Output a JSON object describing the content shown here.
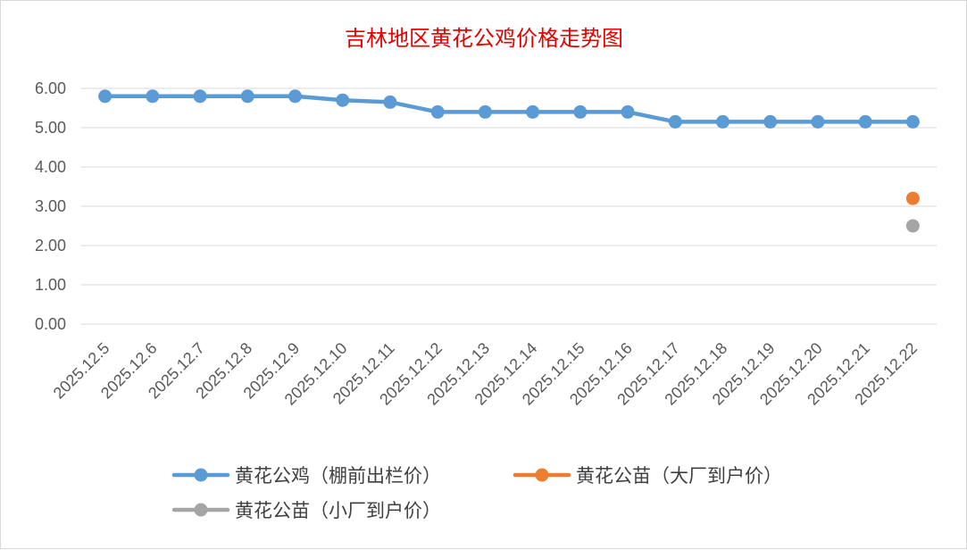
{
  "chart_data": {
    "type": "line",
    "title": "吉林地区黄花公鸡价格走势图",
    "categories": [
      "2025.12.5",
      "2025.12.6",
      "2025.12.7",
      "2025.12.8",
      "2025.12.9",
      "2025.12.10",
      "2025.12.11",
      "2025.12.12",
      "2025.12.13",
      "2025.12.14",
      "2025.12.15",
      "2025.12.16",
      "2025.12.17",
      "2025.12.18",
      "2025.12.19",
      "2025.12.20",
      "2025.12.21",
      "2025.12.22"
    ],
    "ylim": [
      0,
      6
    ],
    "yticks": [
      "0.00",
      "1.00",
      "2.00",
      "3.00",
      "4.00",
      "5.00",
      "6.00"
    ],
    "grid": true,
    "legend_position": "bottom",
    "series": [
      {
        "name": "黄花公鸡（棚前出栏价）",
        "color": "#5b9bd5",
        "values": [
          5.8,
          5.8,
          5.8,
          5.8,
          5.8,
          5.7,
          5.65,
          5.4,
          5.4,
          5.4,
          5.4,
          5.4,
          5.15,
          5.15,
          5.15,
          5.15,
          5.15,
          5.15
        ]
      },
      {
        "name": "黄花公苗（大厂到户价）",
        "color": "#ed7d31",
        "values": [
          null,
          null,
          null,
          null,
          null,
          null,
          null,
          null,
          null,
          null,
          null,
          null,
          null,
          null,
          null,
          null,
          null,
          3.2
        ]
      },
      {
        "name": "黄花公苗（小厂到户价）",
        "color": "#a5a5a5",
        "values": [
          null,
          null,
          null,
          null,
          null,
          null,
          null,
          null,
          null,
          null,
          null,
          null,
          null,
          null,
          null,
          null,
          null,
          2.5
        ]
      }
    ]
  }
}
